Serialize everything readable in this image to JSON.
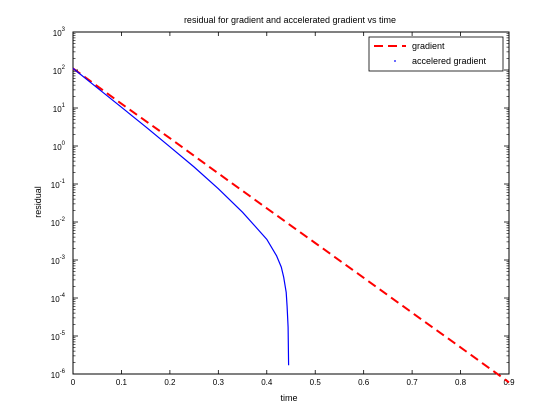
{
  "chart_data": {
    "type": "line",
    "title": "residual for gradient and accelerated gradient vs time",
    "xlabel": "time",
    "ylabel": "residual",
    "xlim": [
      0,
      0.9
    ],
    "ylim": [
      1e-06,
      1000
    ],
    "yscale": "log",
    "grid": false,
    "legend_position": "top-right",
    "x_ticks": [
      "0",
      "0.1",
      "0.2",
      "0.3",
      "0.4",
      "0.5",
      "0.6",
      "0.7",
      "0.8",
      "0.9"
    ],
    "y_ticks": [
      {
        "base": "10",
        "exp": "-6"
      },
      {
        "base": "10",
        "exp": "-5"
      },
      {
        "base": "10",
        "exp": "-4"
      },
      {
        "base": "10",
        "exp": "-3"
      },
      {
        "base": "10",
        "exp": "-2"
      },
      {
        "base": "10",
        "exp": "-1"
      },
      {
        "base": "10",
        "exp": "0"
      },
      {
        "base": "10",
        "exp": "1"
      },
      {
        "base": "10",
        "exp": "2"
      },
      {
        "base": "10",
        "exp": "3"
      }
    ],
    "series": [
      {
        "name": "gradient",
        "style": "dashed",
        "color": "#ff0000",
        "x": [
          0,
          0.1,
          0.2,
          0.3,
          0.4,
          0.5,
          0.6,
          0.7,
          0.8,
          0.9
        ],
        "y": [
          110,
          13,
          1.6,
          0.19,
          0.023,
          0.0028,
          0.00034,
          4.1e-05,
          5e-06,
          6e-07
        ]
      },
      {
        "name": "accelered gradient",
        "style": "dotted",
        "color": "#0000ff",
        "x": [
          0,
          0.05,
          0.1,
          0.15,
          0.2,
          0.25,
          0.3,
          0.35,
          0.4,
          0.42,
          0.43,
          0.435,
          0.44,
          0.442,
          0.444,
          0.445
        ],
        "y": [
          110,
          34,
          10.5,
          3.2,
          0.95,
          0.28,
          0.075,
          0.018,
          0.0035,
          0.0013,
          0.00065,
          0.00035,
          0.00014,
          6e-05,
          1.7e-05,
          1.7e-06
        ]
      }
    ]
  }
}
